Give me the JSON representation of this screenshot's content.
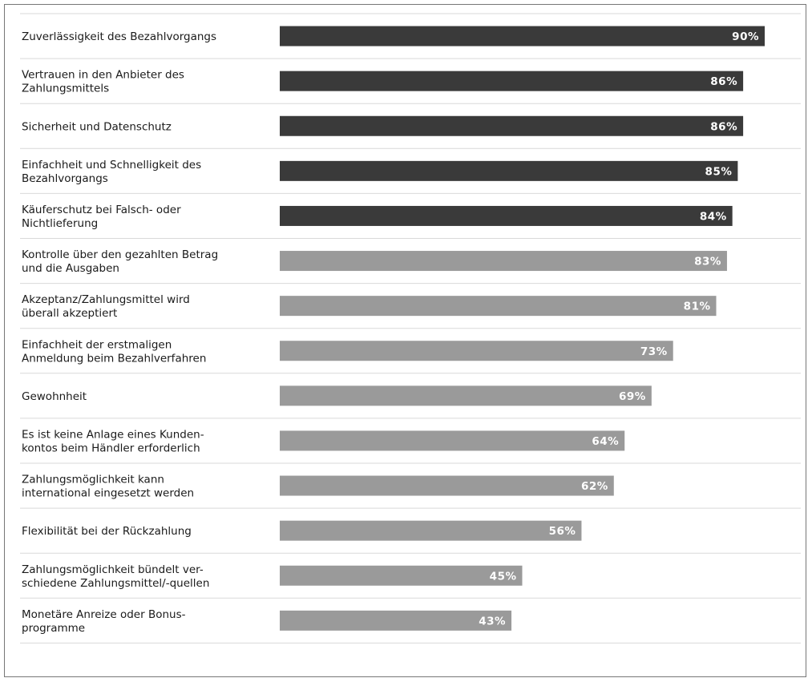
{
  "chart_data": {
    "type": "bar",
    "orientation": "horizontal",
    "categories": [
      "Zuverlässigkeit des Bezahlvorgangs",
      "Vertrauen in den Anbieter des Zahlungsmittels",
      "Sicherheit und Datenschutz",
      "Einfachheit und Schnelligkeit des Bezahlvorgangs",
      "Käuferschutz bei Falsch- oder Nichtlieferung",
      "Kontrolle über den gezahlten Betrag und die Ausgaben",
      "Akzeptanz/Zahlungsmittel wird überall akzeptiert",
      "Einfachheit der erstmaligen Anmeldung beim Bezahlverfahren",
      "Gewohnheit",
      "Es ist keine Anlage eines Kunden-kontos beim Händler erforderlich",
      "Zahlungsmöglichkeit kann international eingesetzt werden",
      "Flexibilität bei der Rückzahlung",
      "Zahlungsmöglichkeit bündelt ver-schiedene Zahlungsmittel/-quellen",
      "Monetäre Anreize oder Bonus-programme"
    ],
    "label_lines": [
      [
        "Zuverlässigkeit des Bezahlvorgangs"
      ],
      [
        "Vertrauen in den Anbieter des",
        "Zahlungsmittels"
      ],
      [
        "Sicherheit und Datenschutz"
      ],
      [
        "Einfachheit und Schnelligkeit des",
        "Bezahlvorgangs"
      ],
      [
        "Käuferschutz bei Falsch- oder",
        "Nichtlieferung"
      ],
      [
        "Kontrolle über den gezahlten Betrag",
        "und die Ausgaben"
      ],
      [
        "Akzeptanz/Zahlungsmittel wird",
        "überall akzeptiert"
      ],
      [
        "Einfachheit der erstmaligen",
        "Anmeldung beim Bezahlverfahren"
      ],
      [
        "Gewohnheit"
      ],
      [
        "Es ist keine Anlage eines Kunden-",
        "kontos beim Händler erforderlich"
      ],
      [
        "Zahlungsmöglichkeit kann",
        "international eingesetzt werden"
      ],
      [
        "Flexibilität bei der Rückzahlung"
      ],
      [
        "Zahlungsmöglichkeit bündelt ver-",
        "schiedene Zahlungsmittel/-quellen"
      ],
      [
        "Monetäre Anreize oder Bonus-",
        "programme"
      ]
    ],
    "values": [
      90,
      86,
      86,
      85,
      84,
      83,
      81,
      73,
      69,
      64,
      62,
      56,
      45,
      43
    ],
    "value_labels": [
      "90%",
      "86%",
      "86%",
      "85%",
      "84%",
      "83%",
      "81%",
      "73%",
      "69%",
      "64%",
      "62%",
      "56%",
      "45%",
      "43%"
    ],
    "highlighted_count": 5,
    "xlim": [
      0,
      100
    ],
    "grid": false,
    "title": "",
    "xlabel": "",
    "ylabel": "",
    "colors": {
      "highlight": "#3a3a3a",
      "normal": "#9a9a9a",
      "separator": "#d9d9d9",
      "value_text": "#ffffff"
    }
  }
}
